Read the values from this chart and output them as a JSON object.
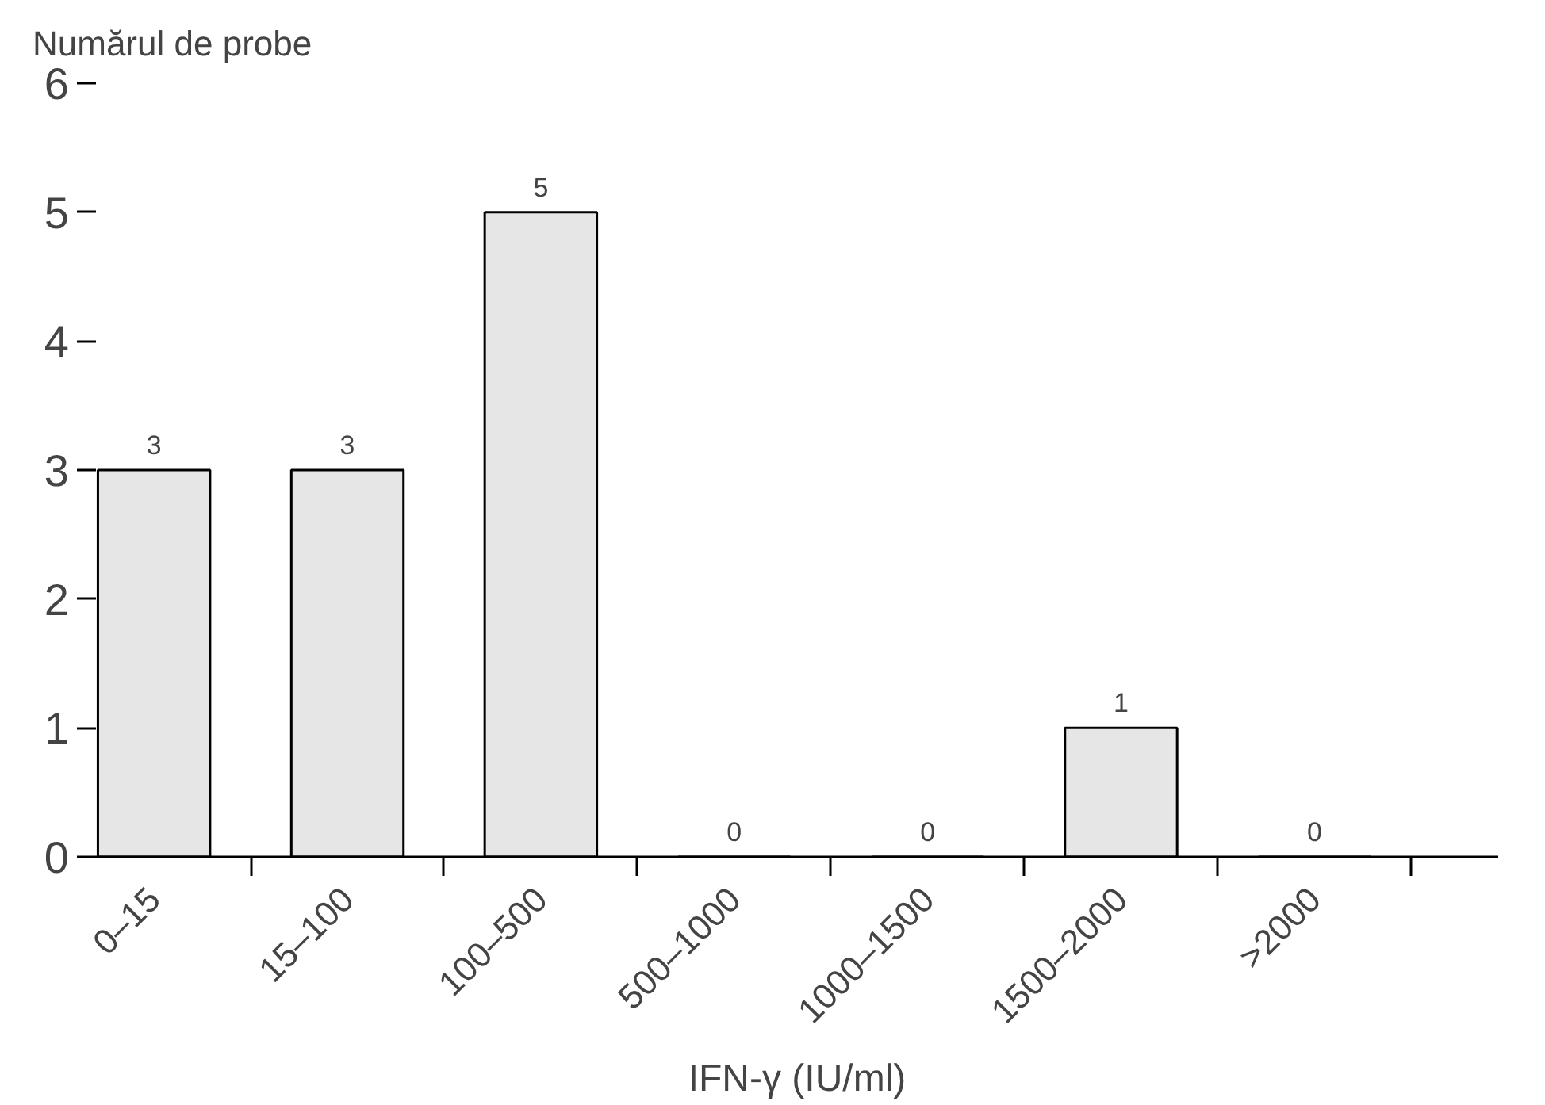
{
  "chart_data": {
    "type": "bar",
    "ylabel": "Numărul de probe",
    "xlabel": "IFN-γ (IU/ml)",
    "categories": [
      "0–15",
      "15–100",
      "100–500",
      "500–1000",
      "1000–1500",
      "1500–2000",
      ">2000"
    ],
    "values": [
      3,
      3,
      5,
      0,
      0,
      1,
      0
    ],
    "color": "#e6e6e6",
    "ylim": [
      0,
      6
    ],
    "yticks": [
      0,
      1,
      2,
      3,
      4,
      5,
      6
    ],
    "grid": false,
    "data_labels": true
  }
}
